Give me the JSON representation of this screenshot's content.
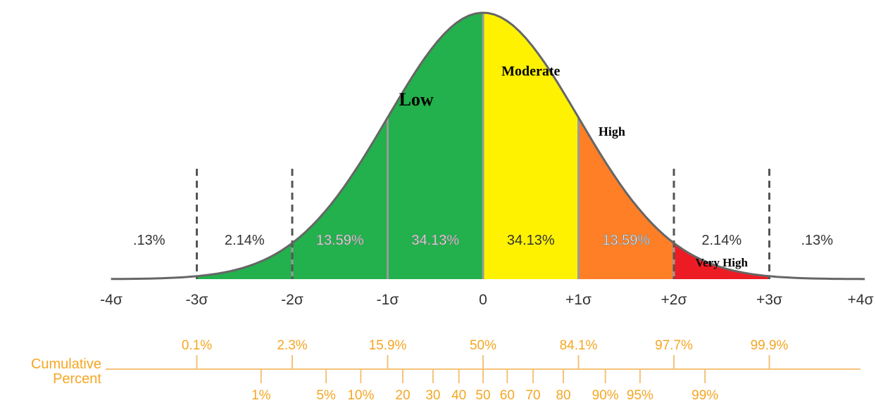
{
  "chart_data": {
    "type": "area",
    "title": "",
    "x_range": [
      -4,
      4
    ],
    "sigma_ticks": [
      {
        "x": -4,
        "label": "-4σ"
      },
      {
        "x": -3,
        "label": "-3σ"
      },
      {
        "x": -2,
        "label": "-2σ"
      },
      {
        "x": -1,
        "label": "-1σ"
      },
      {
        "x": 0,
        "label": "0"
      },
      {
        "x": 1,
        "label": "+1σ"
      },
      {
        "x": 2,
        "label": "+2σ"
      },
      {
        "x": 3,
        "label": "+3σ"
      },
      {
        "x": 4,
        "label": "+4σ"
      }
    ],
    "regions": [
      {
        "name": "Low",
        "from": -3,
        "to": 0,
        "color": "#22b14c"
      },
      {
        "name": "Moderate",
        "from": 0,
        "to": 1,
        "color": "#fff200"
      },
      {
        "name": "High",
        "from": 1,
        "to": 2,
        "color": "#ff7f27"
      },
      {
        "name": "Very High",
        "from": 2,
        "to": 3,
        "color": "#ed1c24"
      }
    ],
    "region_labels": [
      {
        "text": "Low",
        "x": -0.7,
        "y": 0.26
      },
      {
        "text": "Moderate",
        "x": 0.5,
        "y": 0.305
      },
      {
        "text": "High",
        "x": 1.35,
        "y": 0.215
      },
      {
        "text": "Very High",
        "x": 2.5,
        "y": 0.019
      }
    ],
    "band_percents": [
      {
        "from": -4,
        "to": -3,
        "label": ".13%"
      },
      {
        "from": -3,
        "to": -2,
        "label": "2.14%"
      },
      {
        "from": -2,
        "to": -1,
        "label": "13.59%"
      },
      {
        "from": -1,
        "to": 0,
        "label": "34.13%"
      },
      {
        "from": 0,
        "to": 1,
        "label": "34.13%"
      },
      {
        "from": 1,
        "to": 2,
        "label": "13.59%"
      },
      {
        "from": 2,
        "to": 3,
        "label": "2.14%"
      },
      {
        "from": 3,
        "to": 4,
        "label": ".13%"
      }
    ],
    "dashed_markers": [
      -3,
      -2,
      2,
      3
    ],
    "cumulative": {
      "label_line1": "Cumulative",
      "label_line2": "Percent",
      "color": "#f5a623",
      "upper": [
        {
          "x": -3,
          "label": "0.1%"
        },
        {
          "x": -2,
          "label": "2.3%"
        },
        {
          "x": -1,
          "label": "15.9%"
        },
        {
          "x": 0,
          "label": "50%"
        },
        {
          "x": 1,
          "label": "84.1%"
        },
        {
          "x": 2,
          "label": "97.7%"
        },
        {
          "x": 3,
          "label": "99.9%"
        }
      ],
      "lower": [
        {
          "x": -2.326,
          "label": "1%"
        },
        {
          "x": -1.645,
          "label": "5%"
        },
        {
          "x": -1.2816,
          "label": "10%"
        },
        {
          "x": -0.8416,
          "label": "20"
        },
        {
          "x": -0.5244,
          "label": "30"
        },
        {
          "x": -0.2533,
          "label": "40"
        },
        {
          "x": 0,
          "label": "50"
        },
        {
          "x": 0.2533,
          "label": "60"
        },
        {
          "x": 0.5244,
          "label": "70"
        },
        {
          "x": 0.8416,
          "label": "80"
        },
        {
          "x": 1.2816,
          "label": "90%"
        },
        {
          "x": 1.645,
          "label": "95%"
        },
        {
          "x": 2.326,
          "label": "99%"
        }
      ]
    }
  }
}
